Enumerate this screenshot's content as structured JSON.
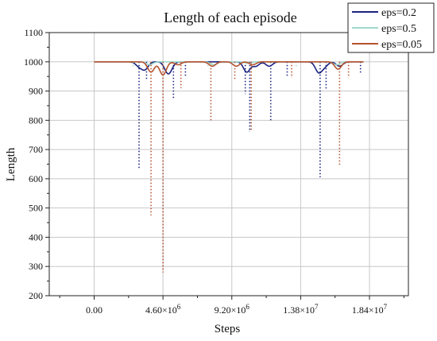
{
  "chart_data": {
    "type": "line",
    "title": "Length of each episode",
    "xlabel": "Steps",
    "ylabel": "Length",
    "xlim": [
      -3000000,
      21000000
    ],
    "ylim": [
      200,
      1100
    ],
    "x_ticks": [
      0,
      4600000,
      9200000,
      13800000,
      18400000
    ],
    "x_tick_labels": [
      "0.00",
      "4.60×10^6",
      "9.20×10^6",
      "1.38×10^7",
      "1.84×10^7"
    ],
    "y_ticks": [
      200,
      300,
      400,
      500,
      600,
      700,
      800,
      900,
      1000,
      1100
    ],
    "grid": true,
    "legend_position": "top-right",
    "series": [
      {
        "name": "eps=0.2",
        "color": "#1a237e",
        "baseline": 1000,
        "dips": [
          [
            3000000,
            985
          ],
          [
            3400000,
            975
          ],
          [
            4900000,
            970
          ],
          [
            5100000,
            985
          ],
          [
            10200000,
            965
          ],
          [
            10800000,
            985
          ],
          [
            11700000,
            985
          ],
          [
            15000000,
            965
          ],
          [
            15400000,
            985
          ],
          [
            16400000,
            985
          ]
        ],
        "spikes": [
          [
            3000000,
            635
          ],
          [
            3500000,
            935
          ],
          [
            5300000,
            870
          ],
          [
            6100000,
            950
          ],
          [
            10100000,
            890
          ],
          [
            10400000,
            760
          ],
          [
            11800000,
            795
          ],
          [
            12900000,
            950
          ],
          [
            15100000,
            605
          ],
          [
            15500000,
            905
          ],
          [
            17800000,
            960
          ]
        ]
      },
      {
        "name": "eps=0.5",
        "color": "#9fd8cc",
        "baseline": 1000,
        "dips": [
          [
            3700000,
            990
          ],
          [
            8000000,
            990
          ],
          [
            10300000,
            995
          ],
          [
            16200000,
            990
          ]
        ],
        "spikes": [
          [
            2600000,
            980
          ],
          [
            7600000,
            980
          ],
          [
            13500000,
            985
          ]
        ]
      },
      {
        "name": "eps=0.05",
        "color": "#b5532e",
        "baseline": 1000,
        "dips": [
          [
            3800000,
            965
          ],
          [
            4600000,
            955
          ],
          [
            5600000,
            990
          ],
          [
            7900000,
            985
          ],
          [
            9500000,
            985
          ],
          [
            10600000,
            990
          ],
          [
            16300000,
            975
          ]
        ],
        "spikes": [
          [
            3800000,
            475
          ],
          [
            4600000,
            280
          ],
          [
            5800000,
            910
          ],
          [
            7800000,
            800
          ],
          [
            9400000,
            935
          ],
          [
            10500000,
            765
          ],
          [
            13200000,
            945
          ],
          [
            16400000,
            645
          ],
          [
            17000000,
            945
          ]
        ]
      }
    ]
  }
}
